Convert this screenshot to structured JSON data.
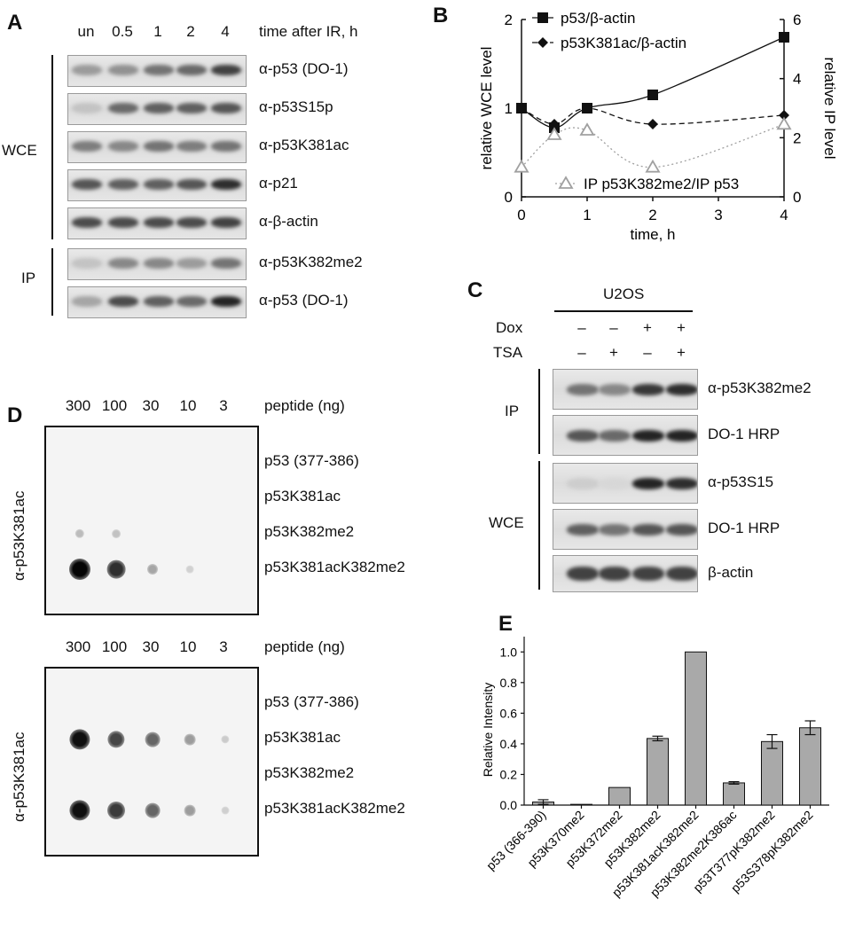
{
  "panels": {
    "A": {
      "letter": "A",
      "lanes": [
        "un",
        "0.5",
        "1",
        "2",
        "4"
      ],
      "time_label": "time after IR, h",
      "group_wce": "WCE",
      "group_ip": "IP",
      "blots": [
        {
          "label": "α-p53 (DO-1)",
          "intensity": [
            0.35,
            0.4,
            0.55,
            0.6,
            0.8
          ]
        },
        {
          "label": "α-p53S15p",
          "intensity": [
            0.15,
            0.6,
            0.65,
            0.65,
            0.7
          ]
        },
        {
          "label": "α-p53K381ac",
          "intensity": [
            0.5,
            0.45,
            0.55,
            0.5,
            0.55
          ]
        },
        {
          "label": "α-p21",
          "intensity": [
            0.7,
            0.65,
            0.65,
            0.7,
            0.9
          ]
        },
        {
          "label": "α-β-actin",
          "intensity": [
            0.75,
            0.75,
            0.75,
            0.75,
            0.8
          ]
        },
        {
          "label": "α-p53K382me2",
          "intensity": [
            0.15,
            0.45,
            0.45,
            0.35,
            0.55
          ]
        },
        {
          "label": "α-p53 (DO-1)",
          "intensity": [
            0.3,
            0.75,
            0.65,
            0.6,
            0.95
          ]
        }
      ]
    },
    "B": {
      "letter": "B",
      "xlabel": "time, h",
      "ylabel_left": "relative WCE level",
      "ylabel_right": "relative IP level",
      "legend1": "p53/β-actin",
      "legend2": "p53K381ac/β-actin",
      "legend3": "IP p53K382me2/IP p53"
    },
    "C": {
      "letter": "C",
      "cell_line": "U2OS",
      "row1_label": "Dox",
      "row1_values": [
        "–",
        "–",
        "+",
        "+"
      ],
      "row2_label": "TSA",
      "row2_values": [
        "–",
        "+",
        "–",
        "+"
      ],
      "group_ip": "IP",
      "group_wce": "WCE",
      "blots": [
        {
          "label": "α-p53K382me2",
          "intensity": [
            0.55,
            0.45,
            0.85,
            0.9
          ]
        },
        {
          "label": "DO-1 HRP",
          "intensity": [
            0.7,
            0.6,
            0.95,
            0.95
          ]
        },
        {
          "label": "α-p53S15",
          "intensity": [
            0.1,
            0.05,
            0.95,
            0.9
          ]
        },
        {
          "label": "DO-1 HRP",
          "intensity": [
            0.65,
            0.55,
            0.7,
            0.7
          ]
        },
        {
          "label": "β-actin",
          "intensity": [
            0.8,
            0.8,
            0.8,
            0.8
          ]
        }
      ]
    },
    "D": {
      "letter": "D",
      "amounts": [
        "300",
        "100",
        "30",
        "10",
        "3"
      ],
      "amount_label": "peptide (ng)",
      "rows": [
        "p53 (377-386)",
        "p53K381ac",
        "p53K382me2",
        "p53K381acK382me2"
      ],
      "blot1_antibody": "α-p53K382me2",
      "blot2_antibody": "α-p53K381ac",
      "blot1_dots": [
        [
          0,
          0,
          0,
          0,
          0
        ],
        [
          0,
          0,
          0,
          0,
          0
        ],
        [
          0.15,
          0.12,
          0,
          0,
          0
        ],
        [
          1.0,
          0.8,
          0.25,
          0.05,
          0
        ]
      ],
      "blot2_dots": [
        [
          0,
          0,
          0,
          0,
          0
        ],
        [
          0.95,
          0.7,
          0.55,
          0.3,
          0.08
        ],
        [
          0,
          0,
          0,
          0,
          0
        ],
        [
          0.95,
          0.75,
          0.55,
          0.3,
          0.06
        ]
      ]
    },
    "E": {
      "letter": "E"
    }
  },
  "chart_data": [
    {
      "type": "line",
      "panel": "B",
      "xlabel": "time, h",
      "ylabel": "relative WCE level",
      "ylabel_right": "relative IP level",
      "x": [
        0,
        0.5,
        1,
        2,
        4
      ],
      "xlim": [
        0,
        4
      ],
      "xticks": [
        0,
        1,
        2,
        3,
        4
      ],
      "ylim": [
        0,
        2
      ],
      "yticks": [
        0,
        1,
        2
      ],
      "ylim_right": [
        0,
        6
      ],
      "yticks_right": [
        0,
        2,
        4,
        6
      ],
      "legend_position": "top",
      "series": [
        {
          "name": "p53/β-actin",
          "axis": "left",
          "marker": "square",
          "style": "solid",
          "color": "#111111",
          "values": [
            1.0,
            0.78,
            1.0,
            1.15,
            1.8
          ]
        },
        {
          "name": "p53K381ac/β-actin",
          "axis": "left",
          "marker": "diamond",
          "style": "dashed",
          "color": "#111111",
          "values": [
            1.0,
            0.82,
            1.0,
            0.82,
            0.92
          ]
        },
        {
          "name": "IP p53K382me2/IP p53",
          "axis": "right",
          "marker": "triangle-open",
          "style": "dotted",
          "color": "#a0a0a0",
          "values": [
            1.0,
            2.1,
            2.25,
            1.0,
            2.45
          ]
        }
      ]
    },
    {
      "type": "bar",
      "panel": "E",
      "ylabel": "Relative Intensity",
      "ylim": [
        0,
        1.1
      ],
      "yticks": [
        "0.0",
        "0.2",
        "0.4",
        "0.6",
        "0.8",
        "1.0"
      ],
      "categories": [
        "p53 (366-390)",
        "p53K370me2",
        "p53K372me2",
        "p53K382me2",
        "p53K381acK382me2",
        "p53K382me2K386ac",
        "p53T377pK382me2",
        "p53S378pK382me2"
      ],
      "values": [
        0.02,
        0.005,
        0.115,
        0.435,
        1.0,
        0.145,
        0.415,
        0.505
      ],
      "errors": [
        0.015,
        0.0,
        0.0,
        0.015,
        0.0,
        0.008,
        0.045,
        0.045
      ],
      "bar_color": "#a9a9a9"
    }
  ]
}
